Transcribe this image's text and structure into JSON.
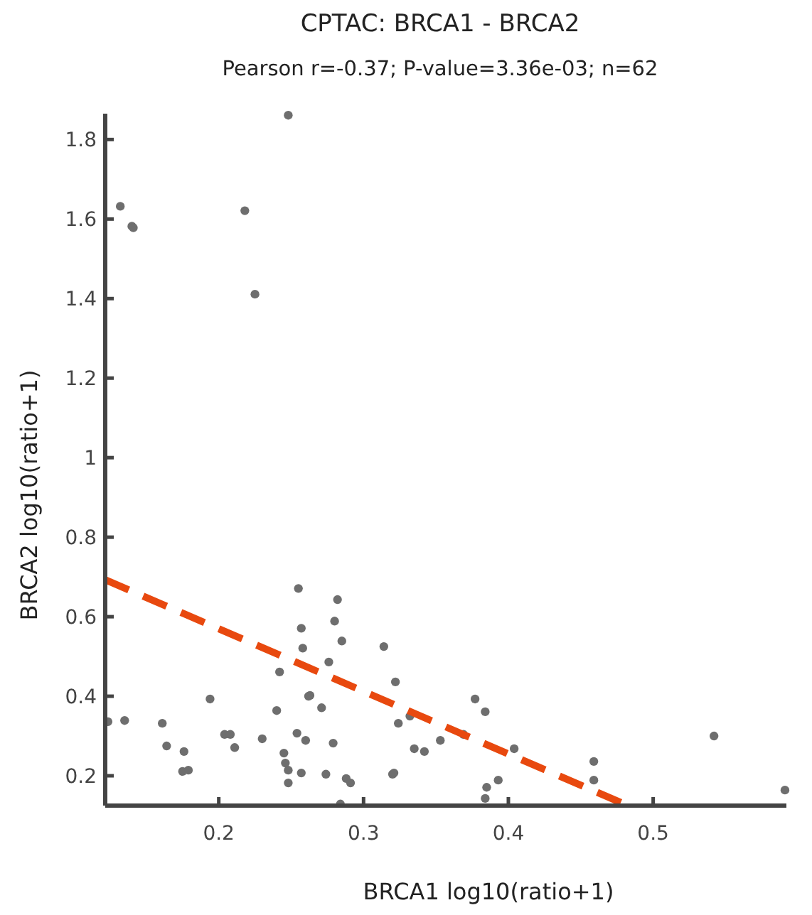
{
  "chart_data": {
    "type": "scatter",
    "title": "CPTAC: BRCA1 - BRCA2",
    "subtitle": "Pearson r=-0.37; P-value=3.36e-03; n=62",
    "xlabel": "BRCA1 log10(ratio+1)",
    "ylabel": "BRCA2 log10(ratio+1)",
    "xlim": [
      0.1216,
      0.592
    ],
    "ylim": [
      0.125,
      1.865
    ],
    "xticks": [
      0.2,
      0.3,
      0.4,
      0.5
    ],
    "yticks": [
      0.2,
      0.4,
      0.6,
      0.8,
      1,
      1.2,
      1.4,
      1.6,
      1.8
    ],
    "grid": false,
    "marker": "circle",
    "series": [
      {
        "type": "scatter",
        "color": "#6e6e6e",
        "x": [
          0.1235,
          0.135,
          0.132,
          0.14,
          0.141,
          0.218,
          0.225,
          0.248,
          0.161,
          0.164,
          0.175,
          0.179,
          0.176,
          0.194,
          0.204,
          0.208,
          0.211,
          0.23,
          0.24,
          0.242,
          0.245,
          0.246,
          0.248,
          0.248,
          0.254,
          0.257,
          0.255,
          0.257,
          0.258,
          0.26,
          0.262,
          0.263,
          0.271,
          0.276,
          0.279,
          0.274,
          0.28,
          0.282,
          0.285,
          0.284,
          0.288,
          0.291,
          0.314,
          0.322,
          0.324,
          0.32,
          0.321,
          0.332,
          0.335,
          0.342,
          0.353,
          0.369,
          0.377,
          0.384,
          0.404,
          0.393,
          0.385,
          0.384,
          0.459,
          0.459,
          0.542,
          0.591
        ],
        "values": [
          0.336,
          0.339,
          1.632,
          1.582,
          1.578,
          1.621,
          1.411,
          1.861,
          0.332,
          0.275,
          0.211,
          0.214,
          0.261,
          0.393,
          0.304,
          0.304,
          0.271,
          0.293,
          0.364,
          0.461,
          0.257,
          0.232,
          0.214,
          0.182,
          0.307,
          0.207,
          0.671,
          0.571,
          0.521,
          0.289,
          0.4,
          0.402,
          0.371,
          0.486,
          0.282,
          0.204,
          0.589,
          0.643,
          0.539,
          0.129,
          0.193,
          0.182,
          0.525,
          0.436,
          0.332,
          0.204,
          0.207,
          0.35,
          0.268,
          0.261,
          0.289,
          0.304,
          0.393,
          0.361,
          0.268,
          0.189,
          0.171,
          0.143,
          0.236,
          0.189,
          0.3,
          0.164
        ]
      },
      {
        "type": "line",
        "color": "#e8490f",
        "line_style": "dashed",
        "marker": "none",
        "x": [
          0.1216,
          0.48
        ],
        "values": [
          0.693,
          0.129
        ]
      }
    ]
  }
}
